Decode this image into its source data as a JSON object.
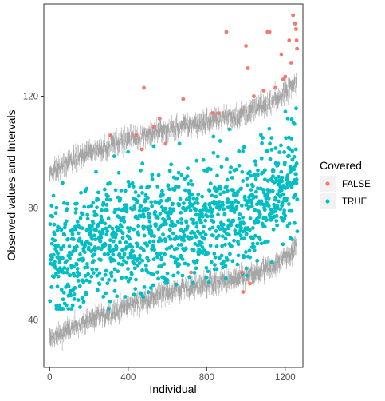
{
  "chart_data": {
    "type": "scatter",
    "xlabel": "Individual",
    "ylabel": "Observed values and Intervals",
    "xlim": [
      -30,
      1290
    ],
    "ylim": [
      23,
      153
    ],
    "x_ticks": [
      0,
      400,
      800,
      1200
    ],
    "x_tick_labels": [
      "0",
      "400",
      "800",
      "1200"
    ],
    "y_ticks": [
      40,
      80,
      120
    ],
    "y_tick_labels": [
      "40",
      "80",
      "120"
    ],
    "grid": false,
    "legend": {
      "title": "Covered",
      "placement": "right",
      "entries": [
        {
          "label": "FALSE",
          "color": "#F8766D"
        },
        {
          "label": "TRUE",
          "color": "#00BFC4"
        }
      ]
    },
    "intervals": {
      "color": "#A6A6A6",
      "n": 1260,
      "lower_trend": [
        [
          0,
          33
        ],
        [
          200,
          40
        ],
        [
          400,
          45
        ],
        [
          600,
          50
        ],
        [
          800,
          53
        ],
        [
          1000,
          55
        ],
        [
          1100,
          58
        ],
        [
          1200,
          62
        ],
        [
          1260,
          67
        ]
      ],
      "upper_trend": [
        [
          0,
          93
        ],
        [
          200,
          100
        ],
        [
          400,
          105
        ],
        [
          600,
          108
        ],
        [
          800,
          111
        ],
        [
          1000,
          114
        ],
        [
          1100,
          117
        ],
        [
          1200,
          121
        ],
        [
          1260,
          126
        ]
      ]
    },
    "series": [
      {
        "name": "FALSE",
        "color": "#F8766D",
        "points": [
          [
            310,
            106
          ],
          [
            480,
            123
          ],
          [
            560,
            112
          ],
          [
            680,
            119
          ],
          [
            720,
            57
          ],
          [
            830,
            114
          ],
          [
            900,
            143
          ],
          [
            1000,
            138
          ],
          [
            1010,
            130
          ],
          [
            1040,
            120
          ],
          [
            1110,
            143
          ],
          [
            1120,
            143
          ],
          [
            1180,
            135
          ],
          [
            1200,
            127
          ],
          [
            1220,
            140
          ],
          [
            1240,
            149
          ],
          [
            1250,
            146
          ],
          [
            1255,
            144
          ],
          [
            1258,
            140
          ],
          [
            1260,
            137
          ],
          [
            1230,
            132
          ],
          [
            1190,
            126
          ],
          [
            1150,
            123
          ],
          [
            985,
            50
          ],
          [
            980,
            57
          ],
          [
            1020,
            53
          ],
          [
            440,
            106
          ],
          [
            470,
            101
          ],
          [
            590,
            103
          ],
          [
            530,
            109
          ],
          [
            860,
            114
          ],
          [
            1090,
            122
          ]
        ]
      },
      {
        "name": "TRUE",
        "color": "#00BFC4",
        "n_points": 1230,
        "trend_center": [
          [
            0,
            62
          ],
          [
            200,
            66
          ],
          [
            400,
            70
          ],
          [
            600,
            73
          ],
          [
            800,
            76
          ],
          [
            1000,
            79
          ],
          [
            1200,
            88
          ],
          [
            1260,
            95
          ]
        ],
        "spread": 12,
        "y_range": [
          44,
          131
        ]
      }
    ]
  }
}
